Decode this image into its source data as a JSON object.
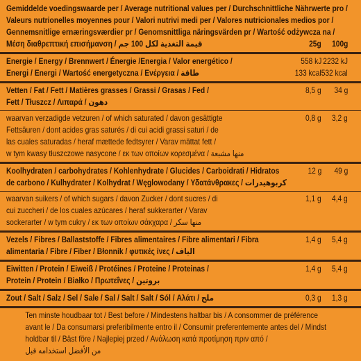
{
  "header": {
    "lines": [
      "Gemiddelde voedingswaarde per / Average nutritional values per / Durchschnittliche Nährwerte pro /",
      "Valeurs nutrionelles moyennes pour / Valori nutrivi medi per / Valores nutricionales medios por /",
      "Gennemsnitlige ernæringsværdier pr / Genomsnittliga näringsvärden pr / Wartość odżywcza na /",
      "Μέση διαθρεπτική επισήμανση / قيمة التغذية لكل 100 جم"
    ],
    "columns": [
      "25g",
      "100g"
    ]
  },
  "rows": [
    {
      "lines": [
        "Energie / Energy / Brennwert / Énergie /Energia / Valor energético /",
        "Energi / Energi / Wartość energetyczna / Ενέργεια / طاقة"
      ],
      "per_25g": [
        "558 kJ",
        "133 kcal"
      ],
      "per_100g": [
        "2232 kJ",
        "532 kcal"
      ]
    },
    {
      "lines": [
        "Vetten / Fat / Fett / Matières grasses / Grassi / Grasas / Fed /",
        "Fett / Tłuszcz / Λιπαρά / دهون"
      ],
      "per_25g": [
        "8,5 g"
      ],
      "per_100g": [
        "34 g"
      ]
    },
    {
      "lines": [
        "waarvan verzadigde vetzuren / of which saturated / davon gesättigte",
        "Fettsäuren / dont acides gras saturés / di cui acidi grassi saturi / de",
        "las cuales saturadas / heraf mættede fedtsyrer / Varav mättat fett /",
        "w tym kwasy tłuszczowe nasycone / εκ των οποίων κορεσμένα / منها مشبعة"
      ],
      "per_25g": [
        "0,8 g"
      ],
      "per_100g": [
        "3,2 g"
      ]
    },
    {
      "lines": [
        "Koolhydraten / carbohydrates / Kohlenhydrate / Glucides / Carboidrati / Hidratos",
        "de carbono / Kulhydrater / Kolhydrat / Węglowodany / Υδατάνθρακες / كربوهيدرات"
      ],
      "per_25g": [
        "12 g"
      ],
      "per_100g": [
        "49 g"
      ]
    },
    {
      "lines": [
        "waarvan suikers / of which sugars / davon Zucker / dont sucres / di",
        "cui zuccheri / de los cuales azúcares / heraf sukkerarter / Varav",
        "sockerarter / w tym cukry / εκ των οποίων σάκχαρα / منها سكر"
      ],
      "per_25g": [
        "1,1 g"
      ],
      "per_100g": [
        "4,4 g"
      ]
    },
    {
      "lines": [
        "Vezels / Fibres / Ballaststoffe / Fibres alimentaires / Fibre alimentari / Fibra",
        "alimentaria / Fibre / Fiber / Błonnik / φυτικές ίνες / الياف"
      ],
      "per_25g": [
        "1,4 g"
      ],
      "per_100g": [
        "5,4 g"
      ]
    },
    {
      "lines": [
        "Eiwitten / Protein / Eiweiß / Protéines / Proteine / Proteinas /",
        "Protein / Protein / Białko / Πρωτεΐνες / بروتين"
      ],
      "per_25g": [
        "1,4 g"
      ],
      "per_100g": [
        "5,4 g"
      ]
    },
    {
      "lines": [
        "Zout / Salt / Salz / Sel / Sale / Sal / Salt / Salt / Sól / Αλάτι / ملح"
      ],
      "per_25g": [
        "0,3 g"
      ],
      "per_100g": [
        "1,3 g"
      ]
    }
  ],
  "footer": {
    "lines": [
      "Ten minste houdbaar tot / Best before / Mindestens haltbar bis / A consommer de préférence",
      "avant le / Da consumarsi preferibilmente entro il / Consumir preferentemente antes del / Mindst",
      "holdbar til / Bäst före / Najlepiej przed / Ανάλωση κατά προτίμηση πριν από /",
      "من الأفضل استخدامه قبل"
    ]
  }
}
